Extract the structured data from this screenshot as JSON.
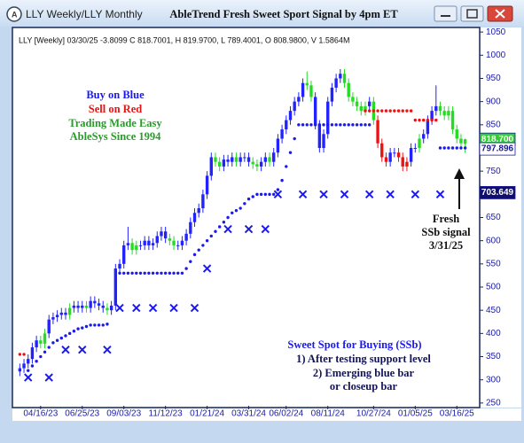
{
  "window_title": "LLY Weekly/LLY Monthly",
  "chart_data": {
    "type": "candlestick",
    "title": "AbleTrend Fresh Sweet Sport Signal by 4pm ET",
    "subtitle": "LLY [Weekly] 03/30/25  -3.8099 C 818.7001, H 819.9700, L 789.4001, O 808.9800, V 1.5864M",
    "categories": [
      null,
      null,
      null,
      null,
      null,
      "04/16/23",
      null,
      null,
      null,
      null,
      null,
      null,
      null,
      null,
      null,
      "06/25/23",
      null,
      null,
      null,
      null,
      null,
      null,
      null,
      null,
      null,
      "09/03/23",
      null,
      null,
      null,
      null,
      null,
      null,
      null,
      null,
      null,
      "11/12/23",
      null,
      null,
      null,
      null,
      null,
      null,
      null,
      null,
      null,
      "01/21/24",
      null,
      null,
      null,
      null,
      null,
      null,
      null,
      null,
      null,
      "03/31/24",
      null,
      null,
      null,
      null,
      null,
      null,
      null,
      null,
      "06/02/24",
      null,
      null,
      null,
      null,
      null,
      null,
      null,
      null,
      null,
      "08/11/24",
      null,
      null,
      null,
      null,
      null,
      null,
      null,
      null,
      null,
      null,
      "10/27/24",
      null,
      null,
      null,
      null,
      null,
      null,
      null,
      null,
      null,
      "01/05/25",
      null,
      null,
      null,
      null,
      null,
      null,
      null,
      null,
      null,
      "03/16/25",
      null,
      null
    ],
    "ohlc": [
      [
        318,
        335,
        308,
        325
      ],
      [
        325,
        345,
        315,
        335
      ],
      [
        335,
        355,
        325,
        345
      ],
      [
        345,
        380,
        335,
        370
      ],
      [
        370,
        395,
        360,
        385
      ],
      [
        385,
        395,
        368,
        378
      ],
      [
        378,
        410,
        368,
        400
      ],
      [
        400,
        440,
        390,
        430
      ],
      [
        430,
        445,
        420,
        435
      ],
      [
        435,
        450,
        425,
        440
      ],
      [
        440,
        455,
        430,
        445
      ],
      [
        445,
        455,
        430,
        440
      ],
      [
        440,
        465,
        430,
        455
      ],
      [
        455,
        470,
        445,
        460
      ],
      [
        460,
        470,
        445,
        455
      ],
      [
        455,
        470,
        445,
        460
      ],
      [
        460,
        470,
        445,
        455
      ],
      [
        455,
        480,
        445,
        470
      ],
      [
        470,
        480,
        455,
        465
      ],
      [
        465,
        475,
        450,
        460
      ],
      [
        460,
        470,
        445,
        455
      ],
      [
        455,
        465,
        440,
        450
      ],
      [
        450,
        470,
        440,
        460
      ],
      [
        460,
        550,
        450,
        540
      ],
      [
        540,
        560,
        530,
        550
      ],
      [
        550,
        600,
        540,
        590
      ],
      [
        590,
        630,
        580,
        595
      ],
      [
        595,
        605,
        570,
        580
      ],
      [
        580,
        600,
        570,
        590
      ],
      [
        590,
        600,
        580,
        590
      ],
      [
        590,
        610,
        580,
        600
      ],
      [
        600,
        610,
        580,
        590
      ],
      [
        590,
        605,
        580,
        595
      ],
      [
        595,
        620,
        585,
        610
      ],
      [
        610,
        630,
        600,
        620
      ],
      [
        620,
        630,
        595,
        605
      ],
      [
        605,
        615,
        590,
        600
      ],
      [
        600,
        610,
        580,
        590
      ],
      [
        590,
        600,
        580,
        590
      ],
      [
        590,
        610,
        580,
        600
      ],
      [
        600,
        625,
        590,
        615
      ],
      [
        615,
        650,
        605,
        640
      ],
      [
        640,
        670,
        630,
        660
      ],
      [
        660,
        680,
        650,
        670
      ],
      [
        670,
        710,
        660,
        700
      ],
      [
        700,
        750,
        690,
        740
      ],
      [
        740,
        790,
        730,
        780
      ],
      [
        780,
        790,
        760,
        770
      ],
      [
        770,
        780,
        750,
        760
      ],
      [
        760,
        785,
        750,
        775
      ],
      [
        775,
        785,
        760,
        770
      ],
      [
        770,
        790,
        760,
        780
      ],
      [
        780,
        790,
        760,
        770
      ],
      [
        770,
        790,
        760,
        780
      ],
      [
        780,
        790,
        770,
        780
      ],
      [
        780,
        790,
        760,
        770
      ],
      [
        770,
        780,
        755,
        765
      ],
      [
        765,
        775,
        750,
        760
      ],
      [
        760,
        780,
        750,
        770
      ],
      [
        770,
        790,
        760,
        780
      ],
      [
        780,
        790,
        760,
        770
      ],
      [
        770,
        800,
        760,
        790
      ],
      [
        790,
        830,
        780,
        820
      ],
      [
        820,
        850,
        810,
        840
      ],
      [
        840,
        870,
        830,
        860
      ],
      [
        860,
        890,
        850,
        880
      ],
      [
        880,
        910,
        870,
        900
      ],
      [
        900,
        920,
        890,
        910
      ],
      [
        910,
        950,
        900,
        940
      ],
      [
        940,
        965,
        925,
        935
      ],
      [
        935,
        945,
        900,
        910
      ],
      [
        910,
        920,
        840,
        850
      ],
      [
        850,
        860,
        790,
        800
      ],
      [
        800,
        840,
        790,
        830
      ],
      [
        830,
        910,
        820,
        900
      ],
      [
        900,
        940,
        890,
        930
      ],
      [
        930,
        960,
        920,
        950
      ],
      [
        950,
        970,
        940,
        960
      ],
      [
        960,
        970,
        930,
        940
      ],
      [
        940,
        950,
        900,
        910
      ],
      [
        910,
        920,
        890,
        900
      ],
      [
        900,
        910,
        880,
        890
      ],
      [
        890,
        900,
        870,
        880
      ],
      [
        880,
        900,
        870,
        890
      ],
      [
        890,
        910,
        880,
        900
      ],
      [
        900,
        910,
        850,
        860
      ],
      [
        860,
        870,
        800,
        810
      ],
      [
        810,
        820,
        770,
        780
      ],
      [
        780,
        790,
        760,
        770
      ],
      [
        770,
        800,
        760,
        790
      ],
      [
        790,
        800,
        780,
        790
      ],
      [
        790,
        800,
        770,
        780
      ],
      [
        780,
        790,
        750,
        760
      ],
      [
        760,
        780,
        750,
        770
      ],
      [
        770,
        810,
        760,
        800
      ],
      [
        800,
        810,
        790,
        800
      ],
      [
        800,
        830,
        790,
        820
      ],
      [
        820,
        840,
        810,
        830
      ],
      [
        830,
        870,
        820,
        860
      ],
      [
        860,
        890,
        850,
        880
      ],
      [
        880,
        935,
        870,
        890
      ],
      [
        890,
        900,
        870,
        880
      ],
      [
        880,
        890,
        860,
        870
      ],
      [
        870,
        890,
        860,
        880
      ],
      [
        880,
        890,
        830,
        840
      ],
      [
        840,
        850,
        810,
        820
      ],
      [
        820,
        830,
        800,
        810
      ],
      [
        808.98,
        819.97,
        789.4,
        818.7
      ]
    ],
    "bar_colors": [
      "#22f",
      "#22f",
      "#22f",
      "#22f",
      "#22f",
      "#2d2",
      "#2d2",
      "#22f",
      "#22f",
      "#22f",
      "#22f",
      "#22f",
      "#2d2",
      "#22f",
      "#22f",
      "#22f",
      "#2d2",
      "#22f",
      "#22f",
      "#22f",
      "#22f",
      "#2d2",
      "#22f",
      "#22f",
      "#22f",
      "#22f",
      "#22f",
      "#2d2",
      "#2d2",
      "#22f",
      "#22f",
      "#22f",
      "#22f",
      "#22f",
      "#22f",
      "#22f",
      "#2d2",
      "#2d2",
      "#22f",
      "#22f",
      "#22f",
      "#22f",
      "#22f",
      "#22f",
      "#22f",
      "#22f",
      "#22f",
      "#2d2",
      "#2d2",
      "#22f",
      "#22f",
      "#22f",
      "#2d2",
      "#22f",
      "#22f",
      "#22f",
      "#2d2",
      "#2d2",
      "#22f",
      "#22f",
      "#2d2",
      "#22f",
      "#22f",
      "#22f",
      "#22f",
      "#22f",
      "#22f",
      "#22f",
      "#22f",
      "#2d2",
      "#2d2",
      "#22f",
      "#22f",
      "#22f",
      "#22f",
      "#22f",
      "#22f",
      "#22f",
      "#2d2",
      "#2d2",
      "#2d2",
      "#2d2",
      "#2d2",
      "#2d2",
      "#22f",
      "#2d2",
      "#e11",
      "#e11",
      "#e11",
      "#22f",
      "#22f",
      "#e11",
      "#e11",
      "#e11",
      "#22f",
      "#22f",
      "#2d2",
      "#22f",
      "#22f",
      "#22f",
      "#22f",
      "#2d2",
      "#2d2",
      "#2d2",
      "#2d2",
      "#2d2",
      "#2d2",
      "#2d2"
    ],
    "series": [
      {
        "marker": "dot",
        "color": "#1a1aee",
        "values": [
          null,
          null,
          320,
          330,
          340,
          350,
          360,
          370,
          380,
          385,
          390,
          395,
          400,
          405,
          410,
          412,
          415,
          418,
          418,
          418,
          418,
          420,
          null,
          null,
          530,
          530,
          530,
          530,
          530,
          530,
          530,
          530,
          530,
          530,
          530,
          530,
          530,
          530,
          530,
          530,
          540,
          555,
          570,
          580,
          590,
          600,
          610,
          620,
          630,
          640,
          650,
          660,
          665,
          670,
          680,
          690,
          695,
          700,
          700,
          700,
          700,
          700,
          710,
          730,
          760,
          790,
          820,
          850,
          850,
          850,
          850,
          850,
          850,
          850,
          850,
          850,
          850,
          850,
          850,
          850,
          850,
          850,
          850,
          850,
          850,
          null,
          null,
          null,
          null,
          null,
          null,
          null,
          null,
          null,
          null,
          null,
          null,
          null,
          null,
          null,
          null,
          800,
          800,
          800,
          800,
          800,
          800,
          800
        ]
      },
      {
        "marker": "dot",
        "color": "#e11",
        "values": [
          355,
          355,
          null,
          null,
          null,
          null,
          null,
          null,
          null,
          null,
          null,
          null,
          null,
          null,
          null,
          null,
          null,
          null,
          null,
          null,
          null,
          null,
          null,
          null,
          null,
          null,
          null,
          null,
          null,
          null,
          null,
          null,
          null,
          null,
          null,
          null,
          null,
          null,
          null,
          null,
          null,
          null,
          null,
          null,
          null,
          null,
          null,
          null,
          null,
          null,
          null,
          null,
          null,
          null,
          null,
          null,
          null,
          null,
          null,
          null,
          null,
          null,
          null,
          null,
          null,
          null,
          null,
          null,
          null,
          null,
          null,
          null,
          null,
          null,
          null,
          null,
          null,
          null,
          null,
          null,
          null,
          null,
          null,
          880,
          880,
          880,
          880,
          880,
          880,
          880,
          880,
          880,
          880,
          880,
          880,
          860,
          860,
          860,
          860,
          860,
          860,
          null,
          null,
          null,
          null,
          null,
          null,
          null
        ]
      },
      {
        "marker": "cross",
        "color": "#1a1aee",
        "values": [
          null,
          null,
          305,
          null,
          null,
          null,
          null,
          305,
          null,
          null,
          null,
          365,
          null,
          null,
          null,
          365,
          null,
          null,
          null,
          null,
          null,
          365,
          null,
          null,
          455,
          null,
          null,
          null,
          455,
          null,
          null,
          null,
          455,
          null,
          null,
          null,
          null,
          455,
          null,
          null,
          null,
          null,
          455,
          null,
          null,
          540,
          null,
          null,
          null,
          null,
          625,
          null,
          null,
          null,
          null,
          625,
          null,
          null,
          null,
          625,
          null,
          null,
          700,
          null,
          null,
          null,
          null,
          null,
          700,
          null,
          null,
          null,
          null,
          700,
          null,
          null,
          null,
          null,
          700,
          null,
          null,
          null,
          null,
          null,
          700,
          null,
          null,
          null,
          null,
          700,
          null,
          null,
          null,
          null,
          null,
          700,
          null,
          null,
          null,
          null,
          null,
          700,
          null,
          null,
          null,
          null,
          null,
          null
        ]
      }
    ],
    "ylim": [
      244,
      1056
    ],
    "yticks": [
      250,
      300,
      350,
      400,
      450,
      500,
      550,
      600,
      650,
      700,
      750,
      800,
      850,
      900,
      950,
      1000,
      1050
    ],
    "price_tags": [
      {
        "value": 818.7,
        "label": "818.700",
        "color": "#33cc33",
        "text_color": "#ffffff"
      },
      {
        "value": 797.896,
        "color": "#ffffff",
        "text_color": "#1a1a99"
      },
      {
        "value": 703.649,
        "color": "#10106a",
        "text_color": "#ffffff"
      }
    ],
    "annotations": [
      {
        "text": "Buy on Blue",
        "color": "#1a1aee"
      },
      {
        "text": "Sell on Red",
        "color": "#e11"
      },
      {
        "text": "Trading Made Easy",
        "color": "#2a9a2a"
      },
      {
        "text": "AbleSys Since 1994",
        "color": "#2a9a2a"
      },
      {
        "text": "Fresh",
        "color": "#111"
      },
      {
        "text": "SSb signal",
        "color": "#111"
      },
      {
        "text": "3/31/25",
        "color": "#111"
      },
      {
        "text": "Sweet Spot for Buying (SSb)",
        "color": "#1a1aee"
      },
      {
        "text": "1) After testing support level",
        "color": "#14145a"
      },
      {
        "text": "2) Emerging blue bar",
        "color": "#14145a"
      },
      {
        "text": "or closeup bar",
        "color": "#14145a"
      }
    ]
  }
}
